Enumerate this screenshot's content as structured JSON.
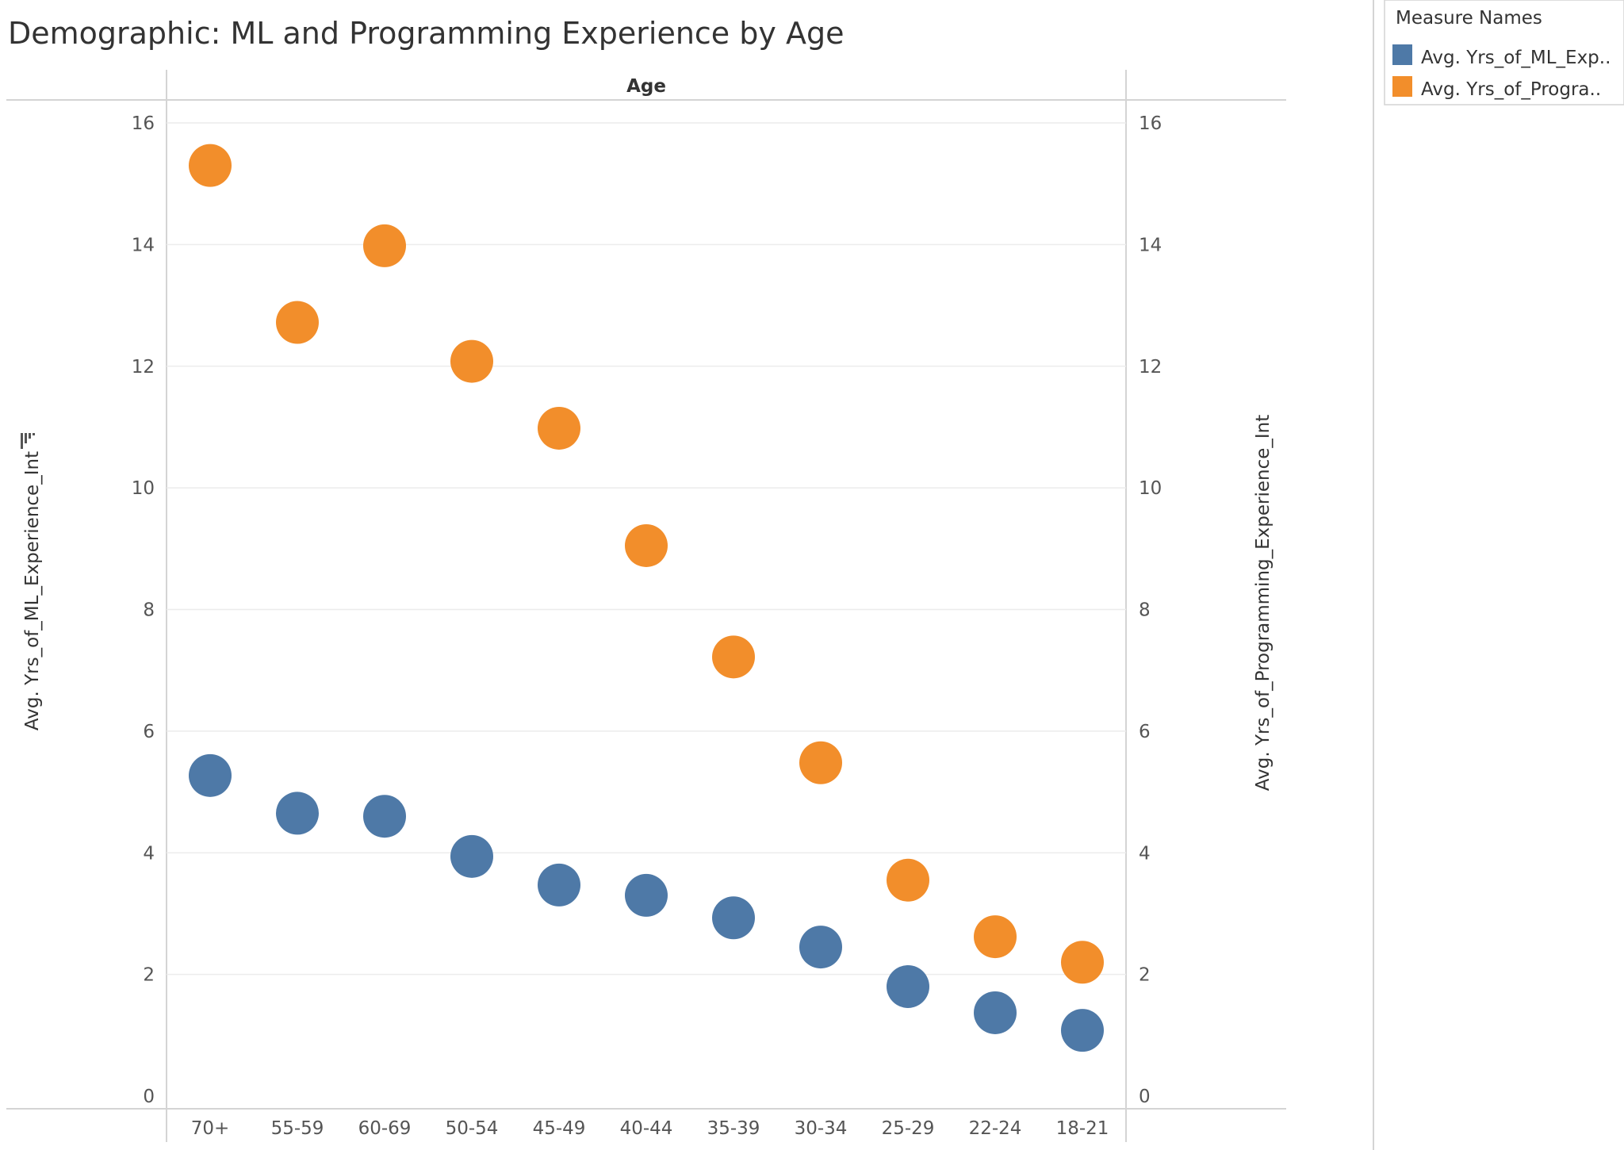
{
  "title": "Demographic: ML and Programming Experience by Age",
  "legend": {
    "title": "Measure Names",
    "items": [
      {
        "label": "Avg. Yrs_of_ML_Exp..",
        "color": "#4e79a7"
      },
      {
        "label": "Avg. Yrs_of_Progra..",
        "color": "#f28e2b"
      }
    ]
  },
  "chart_data": {
    "type": "scatter",
    "title": "Demographic: ML and Programming Experience by Age",
    "xlabel": "Age",
    "ylabel": "Avg. Yrs_of_ML_Experience_Int",
    "ylabel_right": "Avg. Yrs_of_Programming_Experience_Int",
    "categories": [
      "70+",
      "55-59",
      "60-69",
      "50-54",
      "45-49",
      "40-44",
      "35-39",
      "30-34",
      "25-29",
      "22-24",
      "18-21"
    ],
    "ylim": [
      0,
      16
    ],
    "yticks": [
      "0",
      "2",
      "4",
      "6",
      "8",
      "10",
      "12",
      "14",
      "16"
    ],
    "grid": true,
    "legend_position": "top-right",
    "series": [
      {
        "name": "Avg. Yrs_of_ML_Exp..",
        "color": "#4e79a7",
        "values": [
          5.27,
          4.65,
          4.6,
          3.94,
          3.47,
          3.3,
          2.93,
          2.45,
          1.8,
          1.37,
          1.08
        ]
      },
      {
        "name": "Avg. Yrs_of_Progra..",
        "color": "#f28e2b",
        "values": [
          15.3,
          12.72,
          13.98,
          12.08,
          10.98,
          9.05,
          7.22,
          5.48,
          3.55,
          2.62,
          2.2
        ]
      }
    ]
  }
}
